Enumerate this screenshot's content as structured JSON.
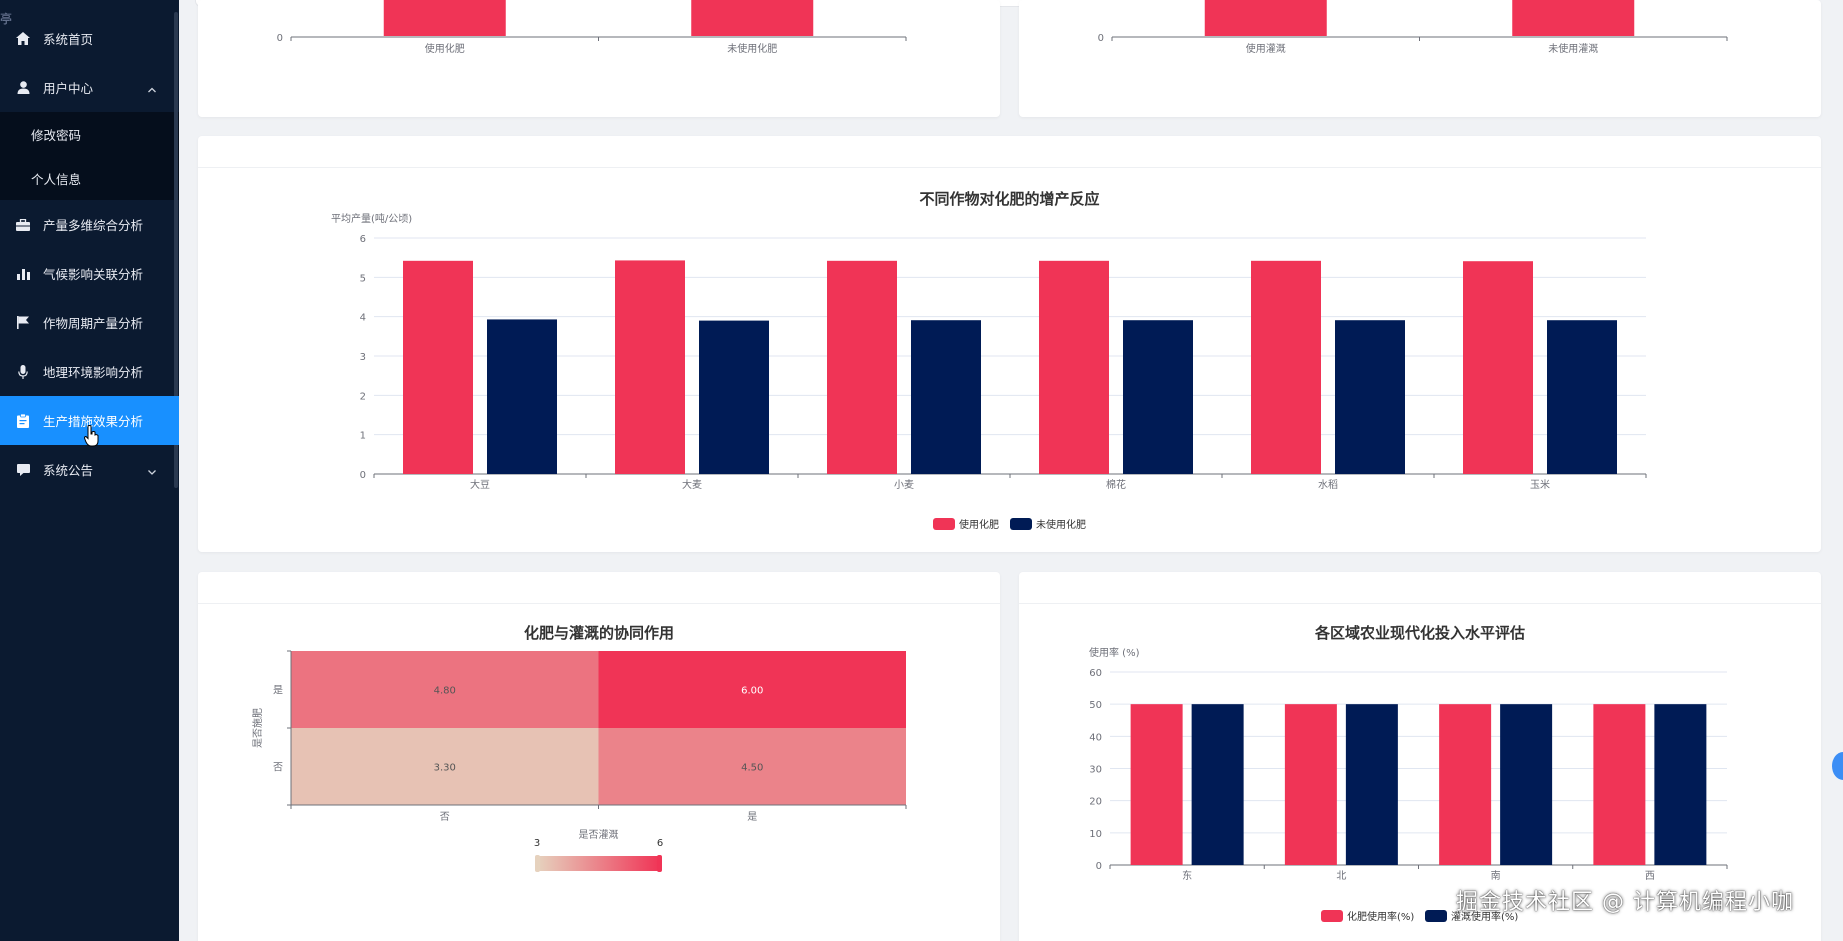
{
  "sidebar": {
    "top_glyph": "亭",
    "items": [
      {
        "label": "系统首页",
        "icon": "home-icon"
      },
      {
        "label": "用户中心",
        "icon": "user-icon",
        "expanded": true,
        "children": [
          {
            "label": "修改密码"
          },
          {
            "label": "个人信息"
          }
        ]
      },
      {
        "label": "产量多维综合分析",
        "icon": "briefcase-icon"
      },
      {
        "label": "气候影响关联分析",
        "icon": "bar-chart-icon"
      },
      {
        "label": "作物周期产量分析",
        "icon": "flag-icon"
      },
      {
        "label": "地理环境影响分析",
        "icon": "microphone-icon"
      },
      {
        "label": "生产措施效果分析",
        "icon": "clipboard-icon",
        "active": true
      },
      {
        "label": "系统公告",
        "icon": "message-icon",
        "expandable": true
      }
    ]
  },
  "colors": {
    "red": "#f03456",
    "navy": "#001b55",
    "active": "#1890ff",
    "sidebar": "#0b1a30"
  },
  "chart_data": [
    {
      "id": "fert-partial",
      "type": "bar",
      "title": "",
      "categories": [
        "使用化肥",
        "未使用化肥"
      ],
      "ytick_visible": [
        "0"
      ],
      "note": "chart cropped at top; only base of bars visible"
    },
    {
      "id": "irr-partial",
      "type": "bar",
      "title": "",
      "categories": [
        "使用灌溉",
        "未使用灌溉"
      ],
      "ytick_visible": [
        "0"
      ],
      "note": "chart cropped at top; only base of bars visible"
    },
    {
      "id": "crop-fert",
      "type": "bar",
      "title": "不同作物对化肥的增产反应",
      "ylabel": "平均产量(吨/公顷)",
      "ylim": [
        0,
        6
      ],
      "yticks": [
        "0",
        "1",
        "2",
        "3",
        "4",
        "5",
        "6"
      ],
      "categories": [
        "大豆",
        "大麦",
        "小麦",
        "棉花",
        "水稻",
        "玉米"
      ],
      "series": [
        {
          "name": "使用化肥",
          "values": [
            5.42,
            5.43,
            5.42,
            5.42,
            5.42,
            5.41
          ]
        },
        {
          "name": "未使用化肥",
          "values": [
            3.93,
            3.9,
            3.91,
            3.91,
            3.91,
            3.91
          ]
        }
      ],
      "legend": "bottom-center"
    },
    {
      "id": "synergy",
      "type": "heatmap",
      "title": "化肥与灌溉的协同作用",
      "xlabel": "是否灌溉",
      "ylabel": "是否施肥",
      "x_categories": [
        "否",
        "是"
      ],
      "y_categories": [
        "否",
        "是"
      ],
      "cells": [
        {
          "x": "否",
          "y": "是",
          "value": "4.80"
        },
        {
          "x": "是",
          "y": "是",
          "value": "6.00"
        },
        {
          "x": "否",
          "y": "否",
          "value": "3.30"
        },
        {
          "x": "是",
          "y": "否",
          "value": "4.50"
        }
      ],
      "visual_map": {
        "min": "3",
        "max": "6"
      }
    },
    {
      "id": "region",
      "type": "bar",
      "title": "各区域农业现代化投入水平评估",
      "ylabel": "使用率 (%)",
      "ylim": [
        0,
        60
      ],
      "yticks": [
        "0",
        "10",
        "20",
        "30",
        "40",
        "50",
        "60"
      ],
      "categories": [
        "东",
        "北",
        "南",
        "西"
      ],
      "series": [
        {
          "name": "化肥使用率(%)",
          "values": [
            50,
            50,
            50,
            50
          ]
        },
        {
          "name": "灌溉使用率(%)",
          "values": [
            50,
            50,
            50,
            50
          ]
        }
      ],
      "legend": "bottom-center"
    }
  ],
  "watermark": "掘金技术社区 @ 计算机编程小咖"
}
